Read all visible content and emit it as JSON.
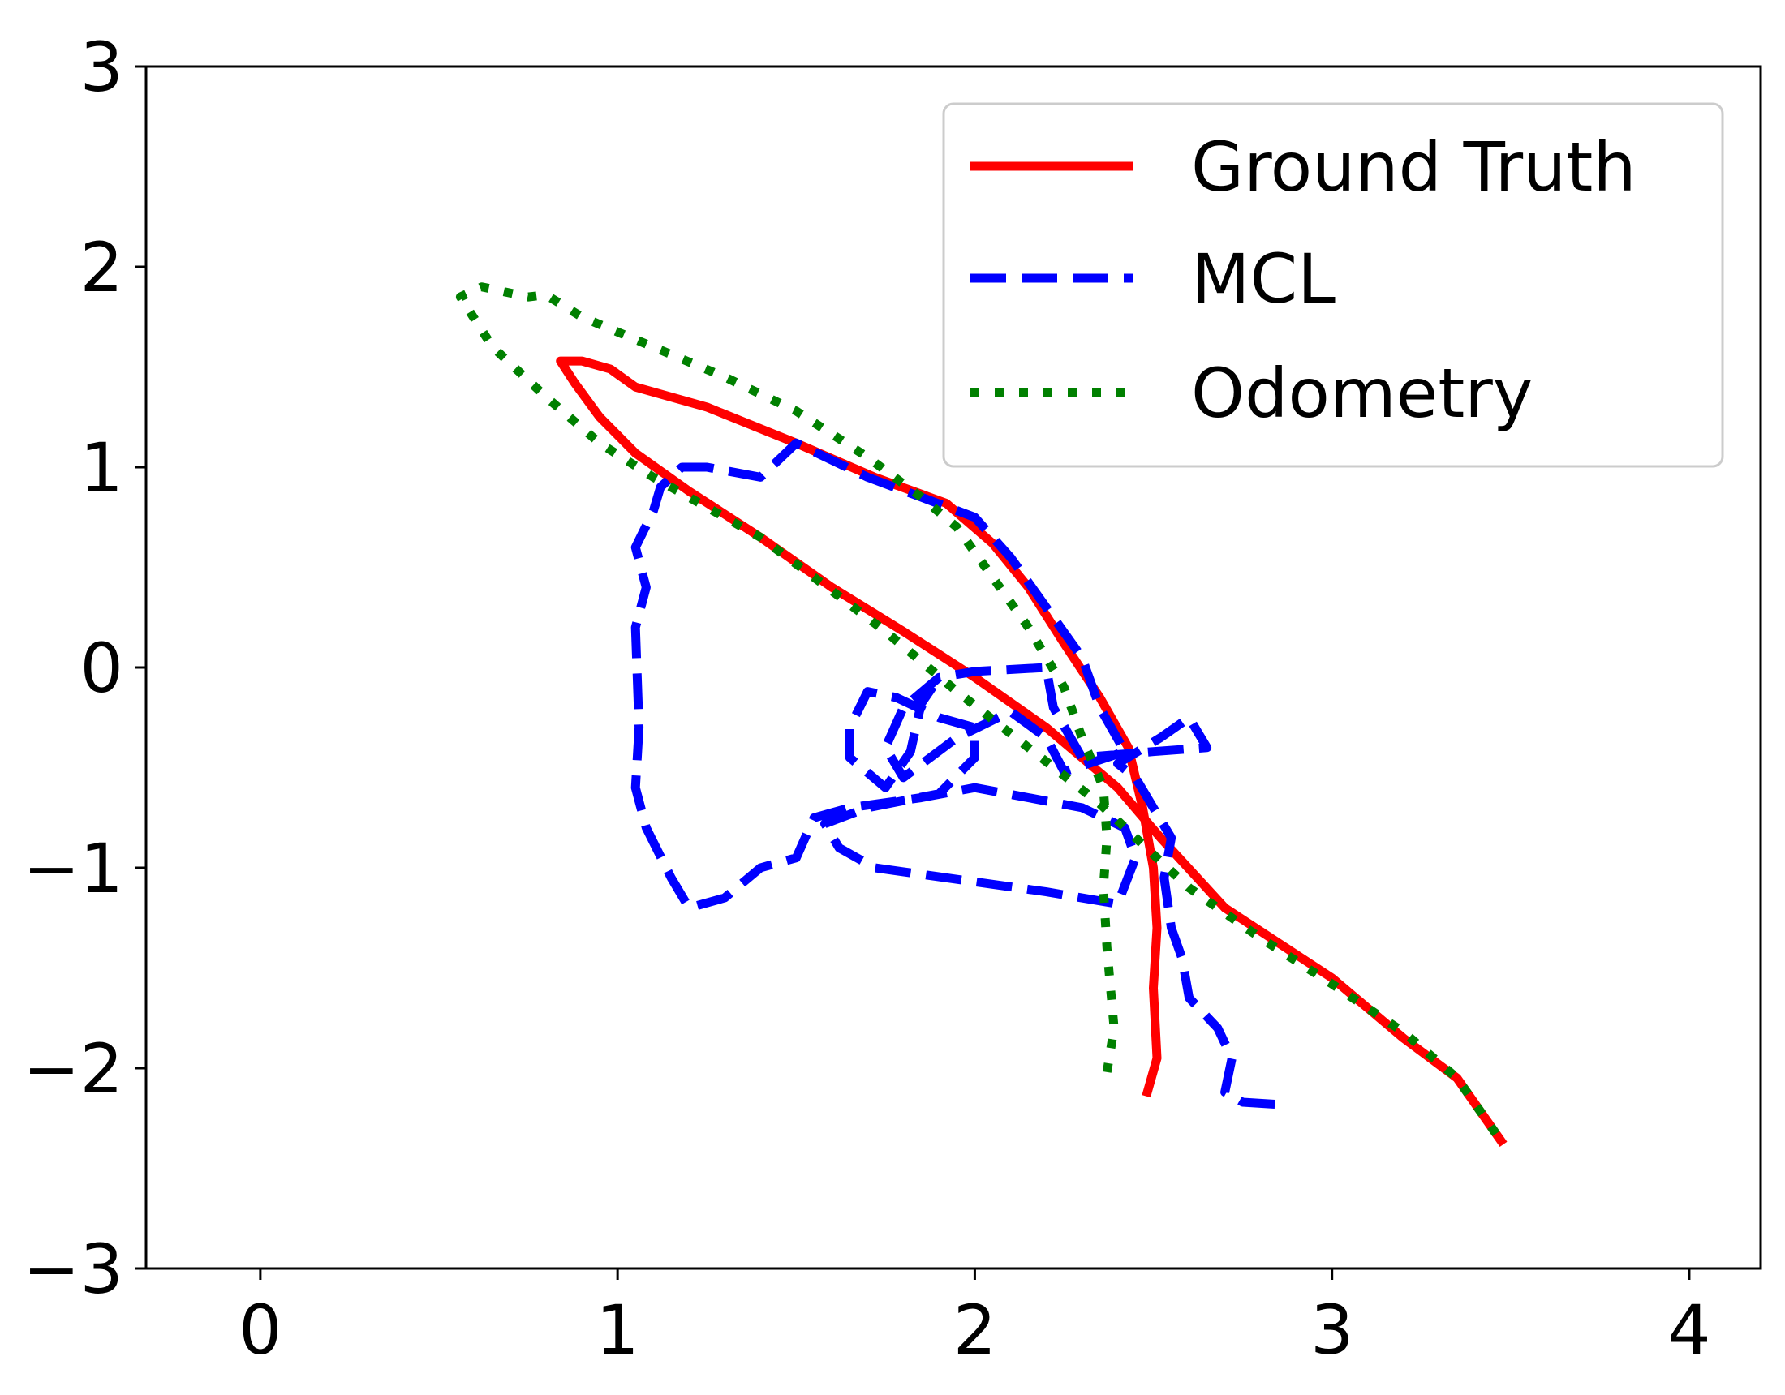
{
  "chart_data": {
    "type": "line",
    "title": "",
    "xlabel": "",
    "ylabel": "",
    "xlim": [
      -0.32,
      4.2
    ],
    "ylim": [
      -3,
      3
    ],
    "xticks": [
      0,
      1,
      2,
      3,
      4
    ],
    "xtick_labels": [
      "0",
      "1",
      "2",
      "3",
      "4"
    ],
    "yticks": [
      -3,
      -2,
      -1,
      0,
      1,
      2,
      3
    ],
    "ytick_labels": [
      "−3",
      "−2",
      "−1",
      "0",
      "1",
      "2",
      "3"
    ],
    "grid": false,
    "legend_position": "top-right",
    "series": [
      {
        "name": "Ground Truth",
        "color": "#ff0000",
        "style": "solid",
        "points": [
          [
            2.48,
            -2.14
          ],
          [
            2.51,
            -1.95
          ],
          [
            2.5,
            -1.6
          ],
          [
            2.51,
            -1.3
          ],
          [
            2.5,
            -1.0
          ],
          [
            2.47,
            -0.7
          ],
          [
            2.43,
            -0.4
          ],
          [
            2.35,
            -0.15
          ],
          [
            2.25,
            0.12
          ],
          [
            2.15,
            0.4
          ],
          [
            2.05,
            0.62
          ],
          [
            1.92,
            0.82
          ],
          [
            1.72,
            0.95
          ],
          [
            1.5,
            1.12
          ],
          [
            1.25,
            1.3
          ],
          [
            1.05,
            1.4
          ],
          [
            0.98,
            1.49
          ],
          [
            0.9,
            1.53
          ],
          [
            0.84,
            1.53
          ],
          [
            0.88,
            1.42
          ],
          [
            0.95,
            1.25
          ],
          [
            1.05,
            1.07
          ],
          [
            1.2,
            0.88
          ],
          [
            1.4,
            0.65
          ],
          [
            1.6,
            0.4
          ],
          [
            1.8,
            0.18
          ],
          [
            2.0,
            -0.05
          ],
          [
            2.2,
            -0.3
          ],
          [
            2.4,
            -0.6
          ],
          [
            2.52,
            -0.85
          ],
          [
            2.7,
            -1.2
          ],
          [
            3.0,
            -1.55
          ],
          [
            3.2,
            -1.85
          ],
          [
            3.35,
            -2.05
          ],
          [
            3.48,
            -2.38
          ]
        ]
      },
      {
        "name": "MCL",
        "color": "#0000ff",
        "style": "dashed",
        "points": [
          [
            2.84,
            -2.18
          ],
          [
            2.75,
            -2.17
          ],
          [
            2.7,
            -2.12
          ],
          [
            2.72,
            -1.95
          ],
          [
            2.68,
            -1.8
          ],
          [
            2.6,
            -1.65
          ],
          [
            2.58,
            -1.45
          ],
          [
            2.55,
            -1.3
          ],
          [
            2.53,
            -1.05
          ],
          [
            2.55,
            -0.85
          ],
          [
            2.5,
            -0.7
          ],
          [
            2.45,
            -0.55
          ],
          [
            2.4,
            -0.48
          ],
          [
            2.52,
            -0.35
          ],
          [
            2.6,
            -0.25
          ],
          [
            2.65,
            -0.4
          ],
          [
            2.5,
            -0.42
          ],
          [
            2.3,
            -0.45
          ],
          [
            2.22,
            -0.2
          ],
          [
            2.2,
            0.0
          ],
          [
            2.0,
            -0.02
          ],
          [
            1.9,
            -0.05
          ],
          [
            1.8,
            -0.2
          ],
          [
            1.75,
            -0.4
          ],
          [
            1.8,
            -0.55
          ],
          [
            1.95,
            -0.35
          ],
          [
            2.1,
            -0.22
          ],
          [
            2.2,
            -0.35
          ],
          [
            2.25,
            -0.52
          ],
          [
            2.42,
            -0.42
          ],
          [
            2.35,
            -0.2
          ],
          [
            2.3,
            0.05
          ],
          [
            2.22,
            0.25
          ],
          [
            2.1,
            0.55
          ],
          [
            2.0,
            0.75
          ],
          [
            1.85,
            0.85
          ],
          [
            1.7,
            0.95
          ],
          [
            1.5,
            1.12
          ],
          [
            1.4,
            0.95
          ],
          [
            1.25,
            1.0
          ],
          [
            1.18,
            1.0
          ],
          [
            1.12,
            0.9
          ],
          [
            1.1,
            0.78
          ],
          [
            1.05,
            0.6
          ],
          [
            1.08,
            0.4
          ],
          [
            1.05,
            0.2
          ],
          [
            1.06,
            -0.3
          ],
          [
            1.05,
            -0.6
          ],
          [
            1.08,
            -0.8
          ],
          [
            1.15,
            -1.05
          ],
          [
            1.2,
            -1.2
          ],
          [
            1.3,
            -1.15
          ],
          [
            1.4,
            -1.0
          ],
          [
            1.5,
            -0.95
          ],
          [
            1.55,
            -0.75
          ],
          [
            1.65,
            -0.7
          ],
          [
            1.85,
            -0.65
          ],
          [
            2.0,
            -0.6
          ],
          [
            2.3,
            -0.7
          ],
          [
            2.42,
            -0.8
          ],
          [
            2.45,
            -0.95
          ],
          [
            2.4,
            -1.18
          ],
          [
            2.2,
            -1.12
          ],
          [
            2.0,
            -1.07
          ],
          [
            1.8,
            -1.02
          ],
          [
            1.72,
            -1.0
          ],
          [
            1.62,
            -0.9
          ],
          [
            1.58,
            -0.78
          ],
          [
            1.7,
            -0.7
          ],
          [
            1.9,
            -0.63
          ],
          [
            2.0,
            -0.45
          ],
          [
            2.0,
            -0.3
          ],
          [
            1.9,
            -0.25
          ],
          [
            1.78,
            -0.15
          ],
          [
            1.7,
            -0.12
          ],
          [
            1.65,
            -0.3
          ],
          [
            1.65,
            -0.45
          ],
          [
            1.75,
            -0.6
          ],
          [
            1.82,
            -0.42
          ],
          [
            1.85,
            -0.18
          ],
          [
            1.9,
            -0.05
          ]
        ]
      },
      {
        "name": "Odometry",
        "color": "#008000",
        "style": "dotted",
        "points": [
          [
            2.37,
            -2.02
          ],
          [
            2.39,
            -1.8
          ],
          [
            2.37,
            -1.4
          ],
          [
            2.36,
            -1.1
          ],
          [
            2.37,
            -0.85
          ],
          [
            2.36,
            -0.6
          ],
          [
            2.3,
            -0.35
          ],
          [
            2.25,
            -0.1
          ],
          [
            2.15,
            0.2
          ],
          [
            2.05,
            0.45
          ],
          [
            1.95,
            0.7
          ],
          [
            1.85,
            0.85
          ],
          [
            1.7,
            1.05
          ],
          [
            1.5,
            1.28
          ],
          [
            1.3,
            1.45
          ],
          [
            1.1,
            1.6
          ],
          [
            0.9,
            1.75
          ],
          [
            0.8,
            1.86
          ],
          [
            0.75,
            1.85
          ],
          [
            0.62,
            1.9
          ],
          [
            0.56,
            1.85
          ],
          [
            0.65,
            1.6
          ],
          [
            0.8,
            1.35
          ],
          [
            0.95,
            1.12
          ],
          [
            1.1,
            0.95
          ],
          [
            1.25,
            0.8
          ],
          [
            1.4,
            0.65
          ],
          [
            1.55,
            0.45
          ],
          [
            1.75,
            0.18
          ],
          [
            1.95,
            -0.12
          ],
          [
            2.15,
            -0.4
          ],
          [
            2.35,
            -0.68
          ],
          [
            2.48,
            -0.9
          ],
          [
            2.6,
            -1.1
          ],
          [
            2.8,
            -1.35
          ],
          [
            3.0,
            -1.58
          ],
          [
            3.2,
            -1.82
          ],
          [
            3.35,
            -2.05
          ],
          [
            3.48,
            -2.38
          ]
        ]
      }
    ]
  }
}
